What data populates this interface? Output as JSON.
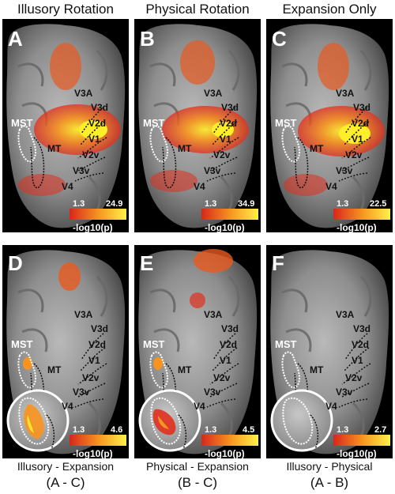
{
  "columns": [
    {
      "title": "Illusory Rotation"
    },
    {
      "title": "Physical Rotation"
    },
    {
      "title": "Expansion Only"
    }
  ],
  "top_panels": [
    {
      "letter": "A",
      "scale_min": "1.3",
      "scale_max": "24.9"
    },
    {
      "letter": "B",
      "scale_min": "1.3",
      "scale_max": "34.9"
    },
    {
      "letter": "C",
      "scale_min": "1.3",
      "scale_max": "22.5"
    }
  ],
  "bottom_panels": [
    {
      "letter": "D",
      "scale_min": "1.3",
      "scale_max": "4.6",
      "caption": "Illusory - Expansion",
      "formula": "(A - C)"
    },
    {
      "letter": "E",
      "scale_min": "1.3",
      "scale_max": "4.5",
      "caption": "Physical - Expansion",
      "formula": "(B - C)"
    },
    {
      "letter": "F",
      "scale_min": "1.3",
      "scale_max": "2.7",
      "caption": "Illusory - Physical",
      "formula": "(A - B)"
    }
  ],
  "scale_label": "-log10(p)",
  "areas": {
    "mst": "MST",
    "mt": "MT",
    "v3a": "V3A",
    "v3d": "V3d",
    "v2d": "V2d",
    "v1": "V1",
    "v2v": "V2v",
    "v3v": "V3v",
    "v4": "V4"
  },
  "colors": {
    "heat_low": "#e0301e",
    "heat_mid": "#f7931e",
    "heat_high": "#ffef2a",
    "background": "#000000"
  }
}
